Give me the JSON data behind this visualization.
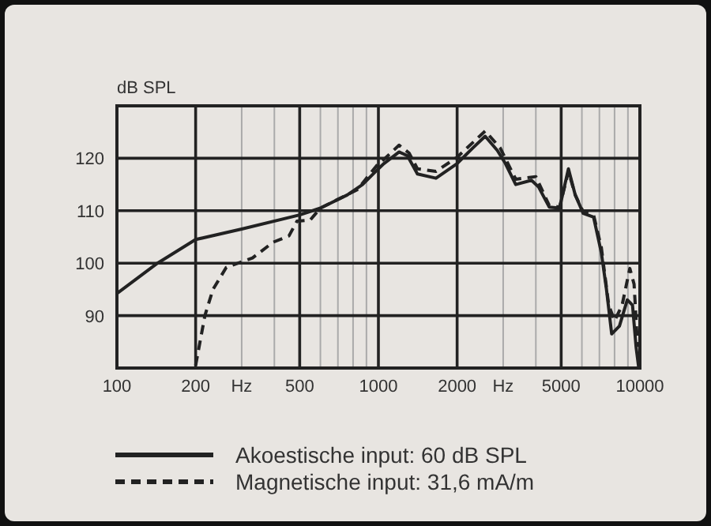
{
  "chart_data": {
    "type": "line",
    "ylabel": "dB SPL",
    "log": "x",
    "grid": true,
    "legend": "bottom",
    "xlim": [
      100,
      10000
    ],
    "ylim": [
      80,
      130
    ],
    "xticks": [
      100,
      200,
      {
        "value": 300,
        "label": "Hz"
      },
      {
        "value": 400,
        "label": null
      },
      500,
      {
        "value": 600,
        "label": null
      },
      {
        "value": 700,
        "label": null
      },
      {
        "value": 800,
        "label": null
      },
      {
        "value": 900,
        "label": null
      },
      1000,
      2000,
      {
        "value": 3000,
        "label": "Hz"
      },
      {
        "value": 4000,
        "label": null
      },
      5000,
      {
        "value": 6000,
        "label": null
      },
      {
        "value": 7000,
        "label": null
      },
      {
        "value": 8000,
        "label": null
      },
      {
        "value": 9000,
        "label": null
      },
      10000
    ],
    "yticks": [
      90,
      100,
      110,
      120
    ],
    "series": [
      {
        "name": "Akoestische input: 60 dB SPL",
        "color": "#222222",
        "line_style": "solid",
        "x": [
          100,
          143,
          200,
          300,
          500,
          600,
          760,
          870,
          1000,
          1050,
          1200,
          1290,
          1410,
          1660,
          2000,
          2300,
          2560,
          2850,
          3060,
          3350,
          3850,
          4100,
          4500,
          4930,
          5330,
          5660,
          6070,
          6650,
          7120,
          7450,
          7800,
          8350,
          8950,
          9370,
          9670,
          9900
        ],
        "values": [
          94.2,
          100,
          104.5,
          106.5,
          109.2,
          110.5,
          113,
          115,
          118,
          119,
          121.2,
          120.5,
          117,
          116.2,
          119,
          122,
          124.2,
          121.5,
          119,
          115,
          115.8,
          114.5,
          110.7,
          110.5,
          118,
          113,
          109.5,
          108.8,
          102,
          95,
          86.5,
          88,
          93,
          92,
          84,
          80
        ]
      },
      {
        "name": "Magnetische input: 31,6 mA/m",
        "color": "#222222",
        "line_style": "dashed",
        "x": [
          200,
          217,
          233,
          262,
          330,
          396,
          455,
          488,
          548,
          600,
          830,
          1000,
          1050,
          1200,
          1310,
          1410,
          1660,
          2000,
          2560,
          2920,
          3350,
          4000,
          4500,
          4930,
          5330,
          5660,
          6070,
          6650,
          7120,
          7600,
          8000,
          8550,
          9150,
          9500,
          9800
        ],
        "values": [
          80.5,
          90,
          95,
          99.2,
          101,
          104,
          105.2,
          108,
          108.2,
          110.5,
          114,
          119,
          119.8,
          122.5,
          121,
          118,
          117.5,
          120.2,
          125.2,
          122,
          116,
          116.5,
          111,
          110.7,
          117.5,
          113,
          109.8,
          109.2,
          103,
          92,
          89,
          92,
          99,
          96,
          84
        ]
      }
    ]
  }
}
